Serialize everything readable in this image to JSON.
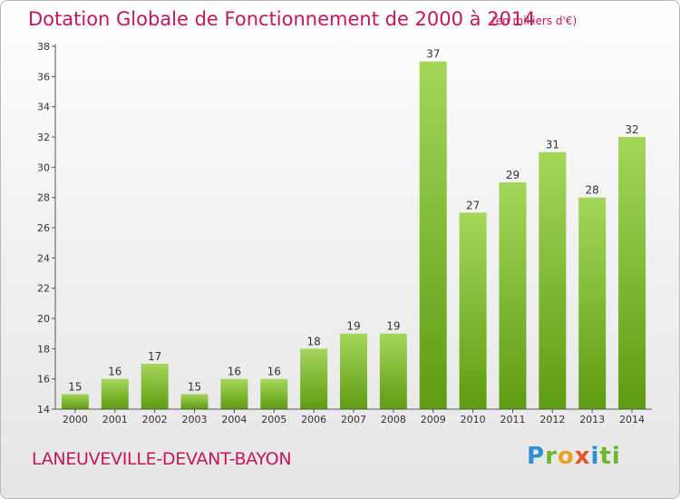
{
  "header": {
    "title": "Dotation Globale de Fonctionnement de 2000 à 2014",
    "subtitle": "(en milliers d'€)"
  },
  "footer": {
    "commune": "LANEUVEVILLE-DEVANT-BAYON",
    "logo_letters": [
      "P",
      "r",
      "o",
      "x",
      "i",
      "t",
      "i"
    ]
  },
  "colors": {
    "title": "#c2185b",
    "bar_light": "#a5d65a",
    "bar_dark": "#5e9c12",
    "axis": "#555555"
  },
  "chart_data": {
    "type": "bar",
    "categories": [
      "2000",
      "2001",
      "2002",
      "2003",
      "2004",
      "2005",
      "2006",
      "2007",
      "2008",
      "2009",
      "2010",
      "2011",
      "2012",
      "2013",
      "2014"
    ],
    "values": [
      15,
      16,
      17,
      15,
      16,
      16,
      18,
      19,
      19,
      37,
      27,
      29,
      31,
      28,
      32
    ],
    "ylim": [
      14,
      38
    ],
    "yticks": [
      14,
      16,
      18,
      20,
      22,
      24,
      26,
      28,
      30,
      32,
      34,
      36,
      38
    ],
    "grid": false,
    "legend": "none"
  }
}
